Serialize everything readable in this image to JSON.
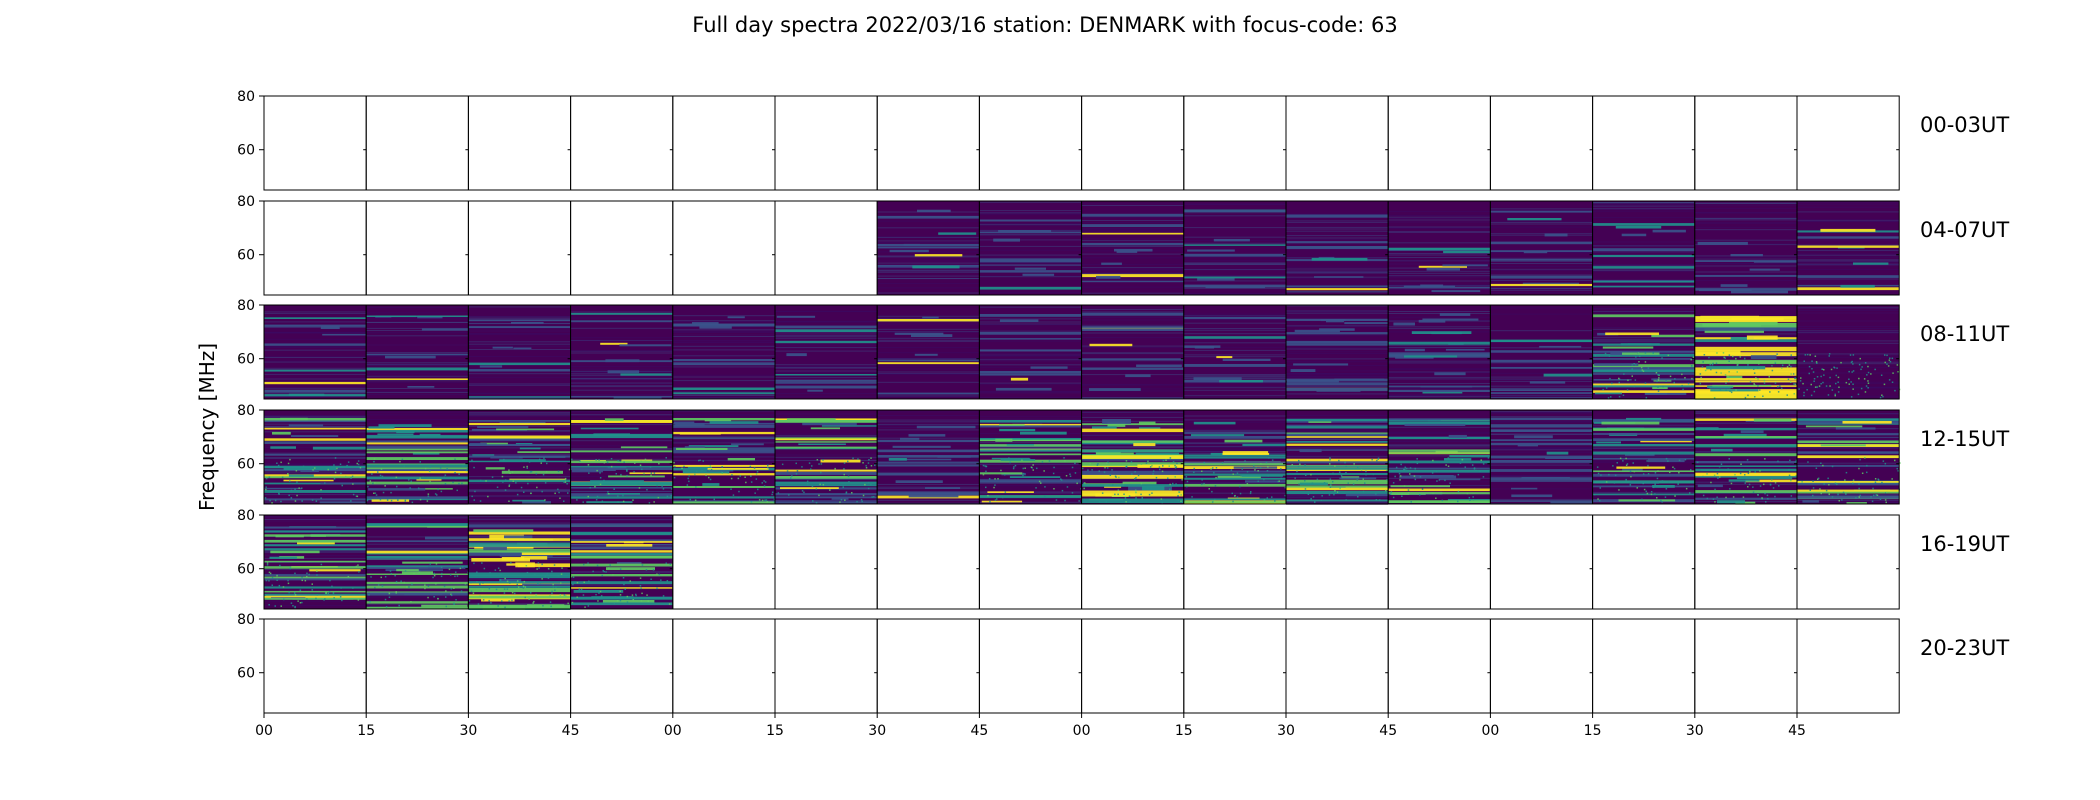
{
  "chart_data": {
    "type": "heatmap",
    "title": "Full day spectra 2022/03/16 station: DENMARK with focus-code: 63",
    "ylabel": "Frequency [MHz]",
    "xlabel": "",
    "y_ticks": [
      "80",
      "60"
    ],
    "ylim": [
      45,
      80
    ],
    "x_ticks": [
      "00",
      "15",
      "30",
      "45",
      "00",
      "15",
      "30",
      "45",
      "00",
      "15",
      "30",
      "45",
      "00",
      "15",
      "30",
      "45"
    ],
    "colormap": "viridis",
    "colors": {
      "background": "#440154",
      "low": "#3b528b",
      "mid": "#21918c",
      "high": "#5ec962",
      "max": "#fde725"
    },
    "rows": [
      {
        "label": "00-03UT",
        "panels": [
          0,
          0,
          0,
          0,
          0,
          0,
          0,
          0,
          0,
          0,
          0,
          0,
          0,
          0,
          0,
          0
        ]
      },
      {
        "label": "04-07UT",
        "panels": [
          0,
          0,
          0,
          0,
          0,
          0,
          1,
          1,
          1,
          1,
          1,
          1,
          1,
          1,
          1,
          1
        ]
      },
      {
        "label": "08-11UT",
        "panels": [
          1,
          1,
          1,
          1,
          1,
          1,
          1,
          1,
          1,
          1,
          2,
          2,
          1,
          3,
          4,
          5
        ]
      },
      {
        "label": "12-15UT",
        "panels": [
          3,
          3,
          3,
          3,
          3,
          3,
          2,
          3,
          4,
          3,
          3,
          3,
          2,
          3,
          3,
          3
        ]
      },
      {
        "label": "16-19UT",
        "panels": [
          3,
          3,
          4,
          3,
          0,
          0,
          0,
          0,
          0,
          0,
          0,
          0,
          0,
          0,
          0,
          0
        ]
      },
      {
        "label": "20-23UT",
        "panels": [
          0,
          0,
          0,
          0,
          0,
          0,
          0,
          0,
          0,
          0,
          0,
          0,
          0,
          0,
          0,
          0
        ]
      }
    ]
  }
}
